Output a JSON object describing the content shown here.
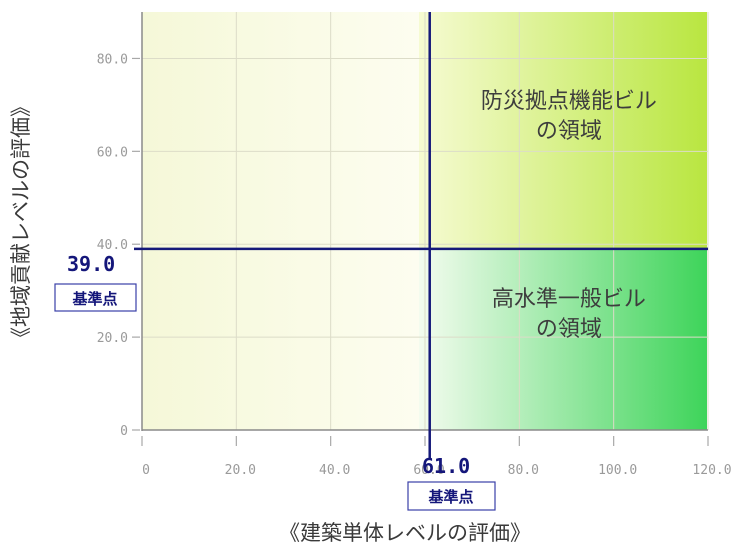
{
  "chart_data": {
    "type": "scatter",
    "xlabel": "《建築単体レベルの評価》",
    "ylabel": "《地域貢献レベルの評価》",
    "xlim": [
      0,
      120
    ],
    "ylim": [
      0,
      90
    ],
    "x_ticks": [
      "0",
      "20.0",
      "40.0",
      "60.0",
      "80.0",
      "100.0",
      "120.0"
    ],
    "x_tick_values": [
      0,
      20,
      40,
      60,
      80,
      100,
      120
    ],
    "y_ticks": [
      "0",
      "20.0",
      "40.0",
      "60.0",
      "80.0"
    ],
    "y_tick_values": [
      0,
      20,
      40,
      60,
      80
    ],
    "grid": true,
    "reference_point": {
      "x": 61.0,
      "y": 39.0,
      "x_label": "61.0",
      "y_label": "39.0",
      "caption": "基準点"
    },
    "regions": [
      {
        "lines": [
          "防災拠点機能ビル",
          "の領域"
        ],
        "quadrant": "top-right"
      },
      {
        "lines": [
          "高水準一般ビル",
          "の領域"
        ],
        "quadrant": "bottom-right"
      }
    ],
    "colors": {
      "reference_lines": "#15197a",
      "top_right_fill": "#b9e640",
      "bottom_right_fill": "#3ed45a",
      "left_fill": "#fbfce2"
    }
  }
}
